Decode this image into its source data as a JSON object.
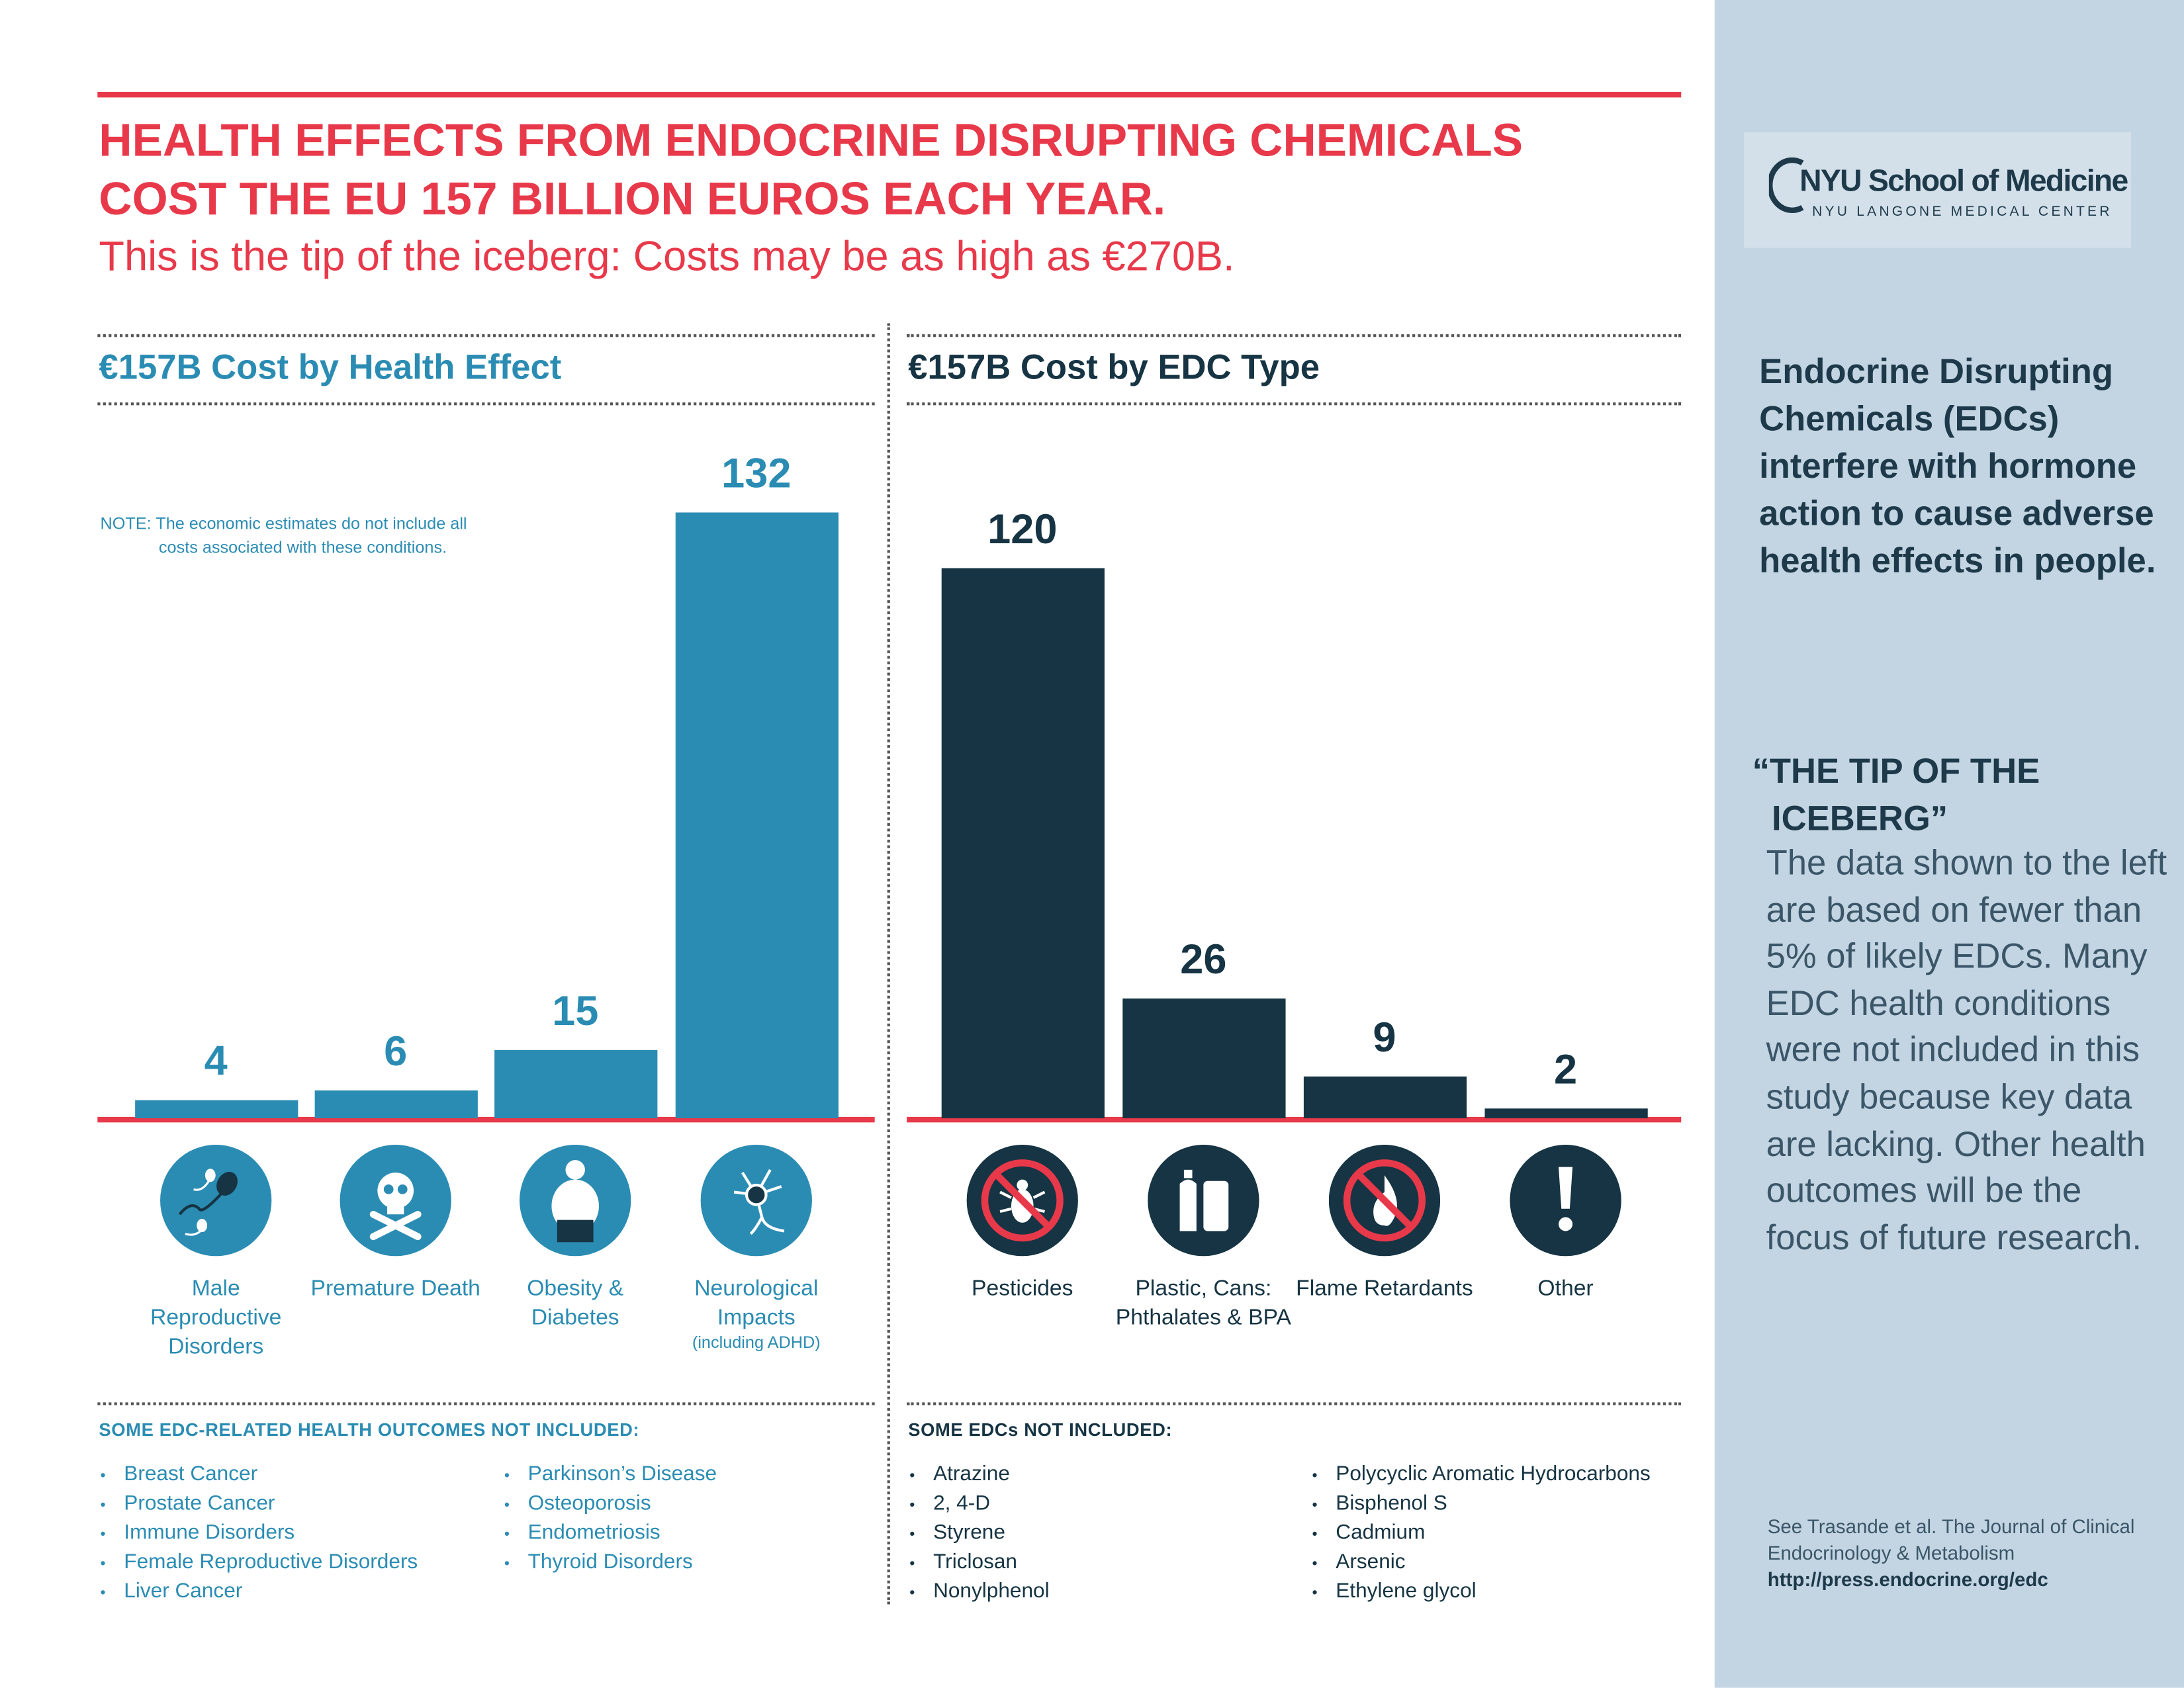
{
  "header": {
    "title": "HEALTH EFFECTS FROM ENDOCRINE DISRUPTING CHEMICALS COST THE EU 157 BILLION EUROS EACH YEAR.",
    "subtitle": "This is the tip of the iceberg: Costs may be as high as €270B."
  },
  "chart_data": [
    {
      "type": "bar",
      "title": "€157B Cost by Health Effect",
      "note": "NOTE: The economic estimates do not include all costs associated with these conditions.",
      "categories": [
        "Male Reproductive Disorders",
        "Premature Death",
        "Obesity & Diabetes",
        "Neurological Impacts"
      ],
      "category_notes": [
        null,
        null,
        null,
        "(including ADHD)"
      ],
      "values": [
        4,
        6,
        15,
        132
      ],
      "color": "#2b8cb3",
      "not_included": {
        "title": "SOME EDC-RELATED HEALTH OUTCOMES NOT INCLUDED:",
        "items": [
          "Breast Cancer",
          "Prostate Cancer",
          "Immune Disorders",
          "Female Reproductive Disorders",
          "Liver Cancer",
          "Parkinson’s Disease",
          "Osteoporosis",
          "Endometriosis",
          "Thyroid Disorders"
        ]
      }
    },
    {
      "type": "bar",
      "title": "€157B Cost by EDC Type",
      "categories": [
        "Pesticides",
        "Plastic, Cans: Phthalates & BPA",
        "Flame Retardants",
        "Other"
      ],
      "values": [
        120,
        26,
        9,
        2
      ],
      "color": "#163443",
      "not_included": {
        "title": "SOME EDCs NOT INCLUDED:",
        "items": [
          "Atrazine",
          "2, 4-D",
          "Styrene",
          "Triclosan",
          "Nonylphenol",
          "Polycyclic Aromatic Hydrocarbons",
          "Bisphenol S",
          "Cadmium",
          "Arsenic",
          "Ethylene glycol"
        ]
      }
    }
  ],
  "logo": {
    "name": "NYU School of Medicine",
    "subname": "NYU LANGONE MEDICAL CENTER"
  },
  "sidebar": {
    "intro": "Endocrine Disrupting Chemicals (EDCs) interfere with hormone action to cause adverse health effects in people.",
    "quote_title": "“THE TIP OF THE ICEBERG”",
    "quote_body": "The data shown to the left are based on fewer than 5% of likely EDCs. Many EDC health conditions were not included in this study because key data are lacking. Other health outcomes will be the focus of future research.",
    "citation": "See Trasande et al. The Journal of Clinical Endocrinology & Metabolism",
    "url": "http://press.endocrine.org/edc"
  }
}
